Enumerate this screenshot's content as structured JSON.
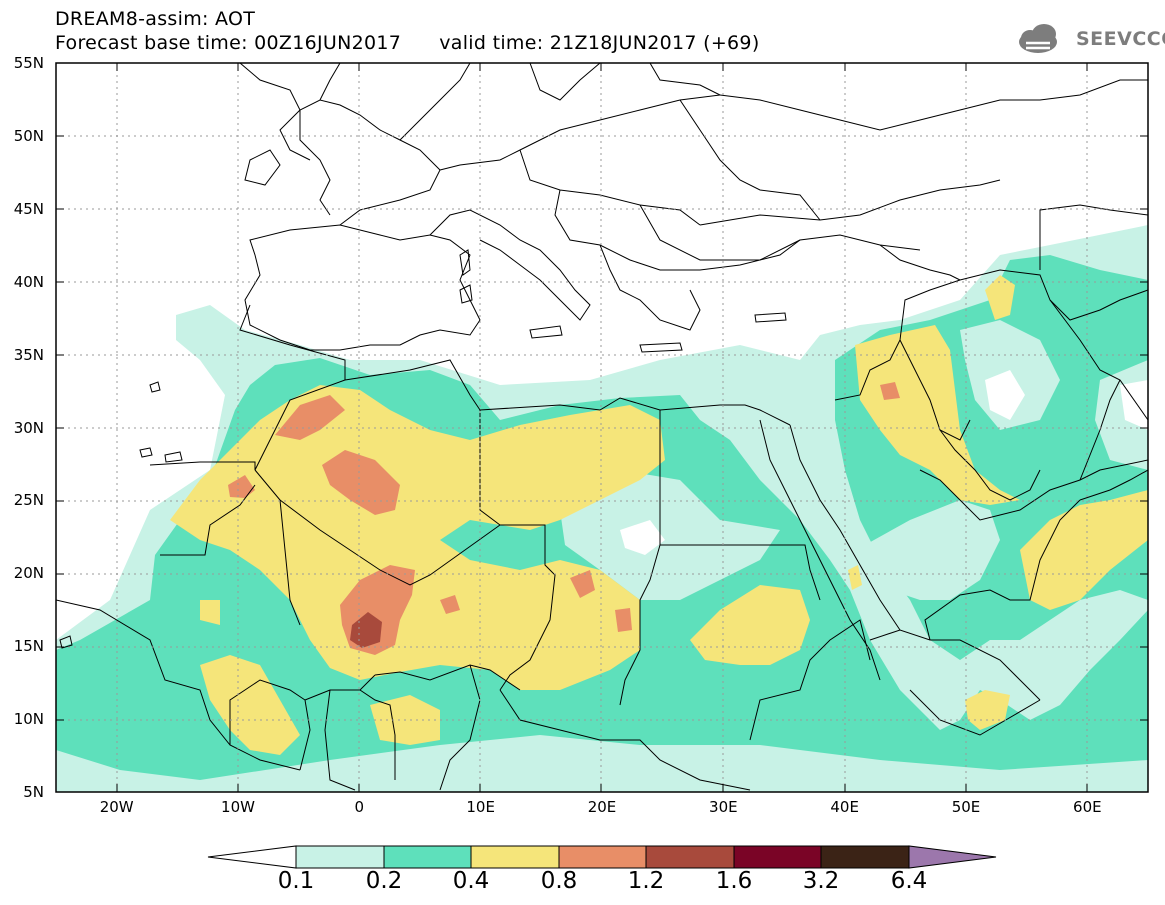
{
  "header": {
    "line1": "DREAM8-assim: AOT",
    "line2": "Forecast base time: 00Z16JUN2017      valid time: 21Z18JUN2017 (+69)"
  },
  "logo": {
    "text": "SEEVCCC",
    "icon": "cloud-icon",
    "color": "#7d7d7d"
  },
  "map": {
    "lat_ticks": [
      {
        "label": "55N",
        "lat": 55
      },
      {
        "label": "50N",
        "lat": 50
      },
      {
        "label": "45N",
        "lat": 45
      },
      {
        "label": "40N",
        "lat": 40
      },
      {
        "label": "35N",
        "lat": 35
      },
      {
        "label": "30N",
        "lat": 30
      },
      {
        "label": "25N",
        "lat": 25
      },
      {
        "label": "20N",
        "lat": 20
      },
      {
        "label": "15N",
        "lat": 15
      },
      {
        "label": "10N",
        "lat": 10
      },
      {
        "label": "5N",
        "lat": 5
      }
    ],
    "lon_ticks": [
      {
        "label": "20W",
        "lon": -20
      },
      {
        "label": "10W",
        "lon": -10
      },
      {
        "label": "0",
        "lon": 0
      },
      {
        "label": "10E",
        "lon": 10
      },
      {
        "label": "20E",
        "lon": 20
      },
      {
        "label": "30E",
        "lon": 30
      },
      {
        "label": "40E",
        "lon": 40
      },
      {
        "label": "50E",
        "lon": 50
      },
      {
        "label": "60E",
        "lon": 60
      }
    ],
    "extent": {
      "lon_min": -25,
      "lon_max": 65,
      "lat_min": 5,
      "lat_max": 55
    }
  },
  "colorbar": {
    "labels": [
      "0.1",
      "0.2",
      "0.4",
      "0.8",
      "1.2",
      "1.6",
      "3.2",
      "6.4"
    ],
    "colors": [
      "#ffffff",
      "#c8f2e6",
      "#5ee0bb",
      "#f5e57a",
      "#e88e67",
      "#a84a3c",
      "#7a0426",
      "#3b2316",
      "#9c77ac"
    ]
  }
}
